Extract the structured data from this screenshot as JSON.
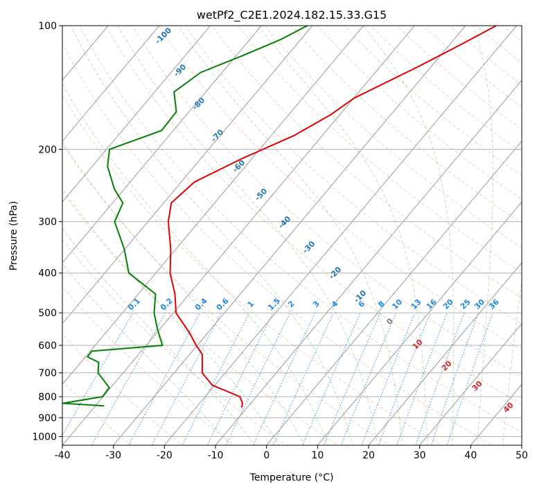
{
  "chart_data": {
    "type": "line",
    "diagram": "skew-T log-p",
    "title": "wetPf2_C2E1.2024.182.15.33.G15",
    "xlabel": "Temperature (°C)",
    "ylabel": "Pressure (hPa)",
    "xlim": [
      -40,
      50
    ],
    "ylim": [
      1050,
      100
    ],
    "y_scale": "log",
    "grid": true,
    "x_ticks": [
      -40,
      -30,
      -20,
      -10,
      0,
      10,
      20,
      30,
      40,
      50
    ],
    "y_ticks": [
      100,
      200,
      300,
      400,
      500,
      600,
      700,
      800,
      900,
      1000
    ],
    "colors": {
      "temperature": "#e00000",
      "dewpoint": "#008000",
      "isotherm": "#9a9a9a",
      "dry_adiabat": "#f4a582",
      "moist_adiabat": "#66bb66",
      "mixing_ratio": "#1e88e5",
      "hlabel_blue": "#1f77b4",
      "hlabel_red": "#d62728",
      "hlabel_gray": "#808080"
    },
    "series": [
      {
        "key": "temperature",
        "points": [
          [
            -24,
            100
          ],
          [
            -27.4,
            110
          ],
          [
            -32.6,
            126
          ],
          [
            -39.9,
            150
          ],
          [
            -41.8,
            165
          ],
          [
            -45.5,
            185
          ],
          [
            -51.8,
            210
          ],
          [
            -57.4,
            240
          ],
          [
            -58.5,
            270
          ],
          [
            -56,
            300
          ],
          [
            -51,
            350
          ],
          [
            -47.2,
            400
          ],
          [
            -42.8,
            450
          ],
          [
            -39.5,
            500
          ],
          [
            -33.5,
            560
          ],
          [
            -30.2,
            600
          ],
          [
            -27.6,
            630
          ],
          [
            -26.2,
            660
          ],
          [
            -24.5,
            700
          ],
          [
            -20.5,
            750
          ],
          [
            -13.2,
            800
          ],
          [
            -11.6,
            830
          ],
          [
            -11.1,
            850
          ]
        ]
      },
      {
        "key": "dewpoint",
        "points": [
          [
            -61,
            100
          ],
          [
            -63.9,
            108
          ],
          [
            -68.6,
            118
          ],
          [
            -74.2,
            130
          ],
          [
            -76.2,
            145
          ],
          [
            -72.5,
            162
          ],
          [
            -72.3,
            180
          ],
          [
            -79.4,
            200
          ],
          [
            -77,
            220
          ],
          [
            -71.9,
            250
          ],
          [
            -68,
            270
          ],
          [
            -66.5,
            300
          ],
          [
            -60.1,
            350
          ],
          [
            -55.3,
            400
          ],
          [
            -46.6,
            450
          ],
          [
            -43.8,
            500
          ],
          [
            -40.3,
            550
          ],
          [
            -36.8,
            600
          ],
          [
            -49.7,
            620
          ],
          [
            -49.6,
            640
          ],
          [
            -46.5,
            660
          ],
          [
            -44.9,
            700
          ],
          [
            -40.3,
            760
          ],
          [
            -40.1,
            800
          ],
          [
            -46.8,
            830
          ],
          [
            -38.3,
            842
          ]
        ]
      }
    ],
    "isotherm_labels": [
      "-100",
      "-90",
      "-80",
      "-70",
      "-60",
      "-50",
      "-40",
      "-30",
      "-20",
      "-10"
    ],
    "mixing_ratio_labels": [
      "0.1",
      "0.2",
      "0.4",
      "0.6",
      "1",
      "1.5",
      "2",
      "3",
      "4",
      "6",
      "8",
      "10",
      "13",
      "16",
      "20",
      "25",
      "30",
      "36"
    ],
    "moist_adiabat_labels": [
      "0",
      "10",
      "20",
      "30",
      "40"
    ]
  }
}
